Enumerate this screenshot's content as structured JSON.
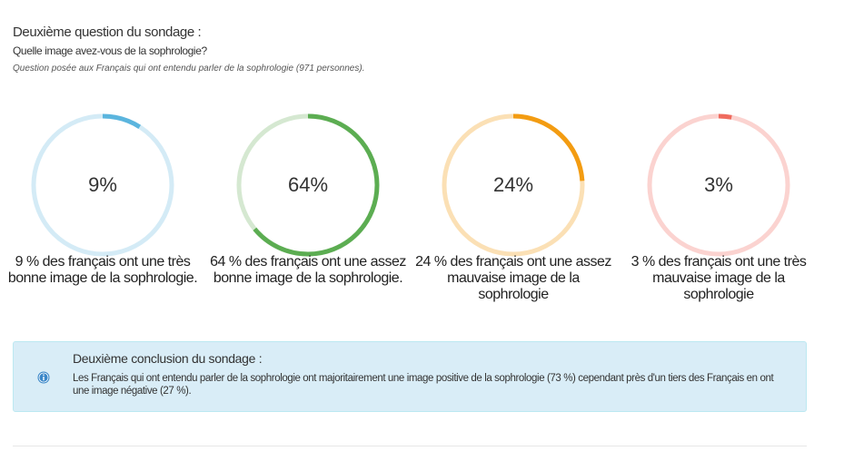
{
  "survey": {
    "title": "Deuxième question du sondage :",
    "question": "Quelle image avez-vous de la sophrologie?",
    "note": "Question posée aux Français qui ont entendu parler de la sophrologie (971 personnes)."
  },
  "stats": [
    {
      "percent_label": "9%",
      "percent_value": 9,
      "description": "9 % des français ont une très bonne image de la sophrologie.",
      "color": "#5bb5de",
      "track_color": "#d4ebf6"
    },
    {
      "percent_label": "64%",
      "percent_value": 64,
      "description": "64 % des français ont une assez bonne image de la sophrologie.",
      "color": "#5cad52",
      "track_color": "#d5e8d1"
    },
    {
      "percent_label": "24%",
      "percent_value": 24,
      "description": "24 % des français ont une assez mauvaise image de la sophrologie",
      "color": "#f39c12",
      "track_color": "#fbe0b5"
    },
    {
      "percent_label": "3%",
      "percent_value": 3,
      "description": "3 % des français ont une très mauvaise image de la sophrologie",
      "color": "#ef6b5e",
      "track_color": "#fbd3d0"
    }
  ],
  "conclusion": {
    "icon": "info-icon",
    "title": "Deuxième conclusion du sondage :",
    "body": "Les Français qui ont entendu parler de la sophrologie ont majoritairement une image positive de la sophrologie (73 %) cependant près d'un tiers des Français en ont une image négative (27 %)."
  }
}
